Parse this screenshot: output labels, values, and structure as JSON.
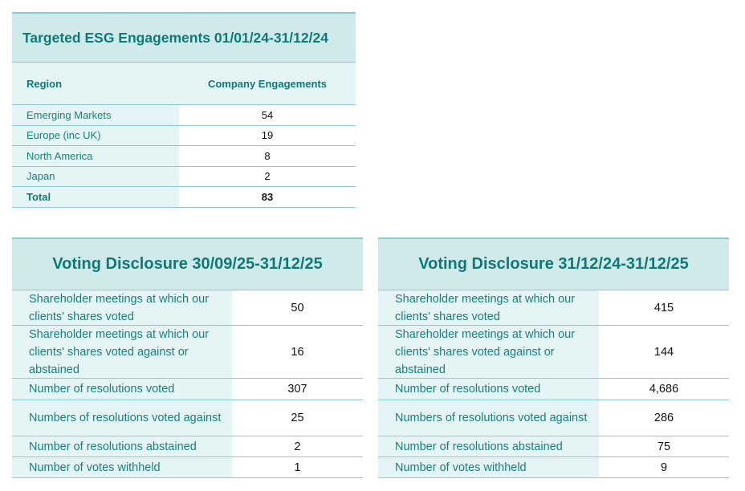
{
  "esg_engagements": {
    "title": "Targeted ESG Engagements 01/01/24-31/12/24",
    "headers": [
      "Region",
      "Company Engagements"
    ],
    "rows": [
      {
        "region": "Emerging Markets",
        "engagements": "54"
      },
      {
        "region": "Europe (inc UK)",
        "engagements": "19"
      },
      {
        "region": "North America",
        "engagements": "8"
      },
      {
        "region": "Japan",
        "engagements": "2"
      }
    ],
    "total": {
      "label": "Total",
      "value": "83"
    }
  },
  "voting_quarter": {
    "title": "Voting Disclosure 30/09/25-31/12/25",
    "rows": [
      {
        "label": "Shareholder meetings at which our clients' shares voted",
        "value": "50"
      },
      {
        "label": "Shareholder meetings at which our clients' shares voted against or abstained",
        "value": "16"
      },
      {
        "label": "Number of resolutions voted",
        "value": "307"
      },
      {
        "label": "Numbers of resolutions voted against",
        "value": "25"
      },
      {
        "label": "Number of resolutions abstained",
        "value": "2"
      },
      {
        "label": "Number of votes withheld",
        "value": "1"
      }
    ]
  },
  "voting_year": {
    "title": "Voting Disclosure 31/12/24-31/12/25",
    "rows": [
      {
        "label": "Shareholder meetings at which our clients' shares voted",
        "value": "415"
      },
      {
        "label": "Shareholder meetings at which our clients' shares voted against or abstained",
        "value": "144"
      },
      {
        "label": "Number of resolutions voted",
        "value": "4,686"
      },
      {
        "label": "Numbers of resolutions voted against",
        "value": "286"
      },
      {
        "label": "Number of resolutions abstained",
        "value": "75"
      },
      {
        "label": "Number of votes withheld",
        "value": "9"
      }
    ]
  },
  "colors": {
    "title_bg": "#d0eaeb",
    "label_bg": "#e5f4f4",
    "border": "#8ccbcd",
    "title_text": "#0e7a76",
    "label_text": "#1a7f7b"
  }
}
